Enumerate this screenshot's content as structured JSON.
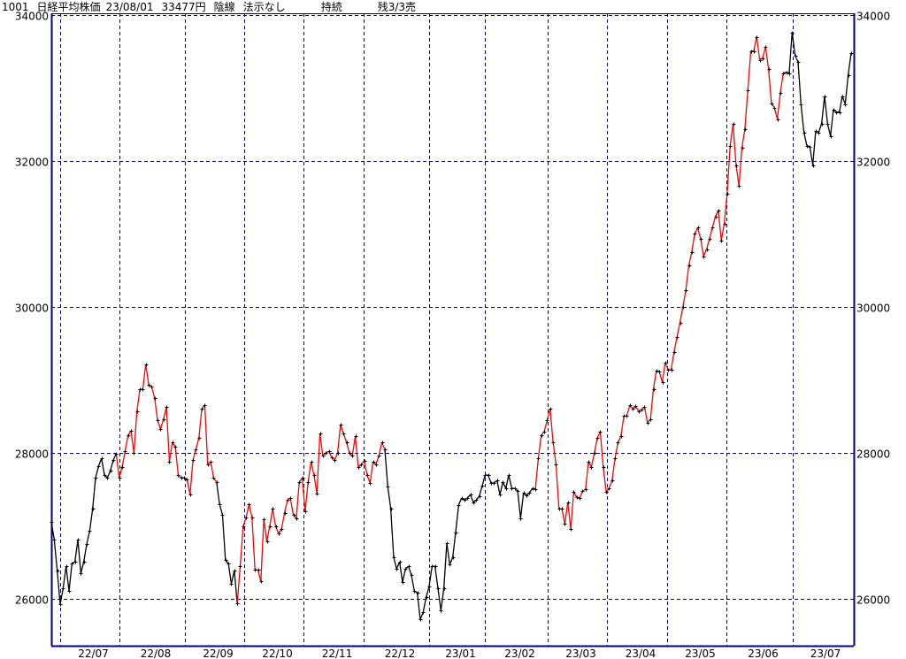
{
  "header": {
    "code": "1001",
    "name": "日経平均株価",
    "date": "23/08/01",
    "price": "33477円",
    "line_type": "陰線",
    "rule": "法示なし",
    "status": "持続",
    "remaining": "残3/3売"
  },
  "colors": {
    "frame": "#000080",
    "grid": "#000080",
    "up_line": "#ff0000",
    "down_line": "#000000",
    "marker": "#000000"
  },
  "chart_data": {
    "type": "line",
    "ylim": [
      25360,
      34020
    ],
    "yticks": [
      34000,
      32000,
      30000,
      28000,
      26000
    ],
    "ytick_labels": [
      "34000",
      "32000",
      "30000",
      "28000",
      "26000"
    ],
    "x_tick_labels": [
      "22/07",
      "22/08",
      "22/09",
      "22/10",
      "22/11",
      "22/12",
      "23/01",
      "23/02",
      "23/03",
      "23/04",
      "23/05",
      "23/06",
      "23/07"
    ],
    "grid": true,
    "markers": "plus",
    "segments": [
      {
        "color": "black",
        "values": [
          27055,
          26812,
          26388,
          25927,
          26145,
          26448,
          26109,
          26485,
          26509,
          26812,
          26351,
          26509,
          26751,
          26933,
          27236,
          27660,
          27818,
          27927,
          27697,
          27660,
          27757,
          27903,
          27988
        ]
      },
      {
        "color": "red",
        "values": [
          27660,
          27806,
          28024,
          28242,
          28303,
          28000,
          28570,
          28873,
          28873,
          29212,
          28933,
          28909,
          28751,
          28448,
          28327,
          28460,
          28630,
          27879,
          28145,
          28085,
          27697,
          27660,
          27660,
          27636,
          27430,
          27903,
          28048,
          28206,
          28606,
          28654,
          27842,
          27879,
          27660,
          27600
        ]
      },
      {
        "color": "black",
        "values": [
          27297,
          27151,
          26533,
          26485,
          26206,
          26388,
          25939
        ]
      },
      {
        "color": "red",
        "values": [
          26448,
          26994,
          27115,
          27297,
          27115,
          26400,
          26400,
          26242,
          27091,
          26788,
          26994,
          27236,
          26994,
          26897,
          26957,
          27176,
          27357,
          27382,
          27151,
          27103,
          27600,
          27660,
          27200,
          27600,
          27879,
          27697,
          27442,
          28266,
          27963,
          28000,
          28024,
          27939,
          27903,
          28000,
          28388,
          28266,
          28145,
          28000,
          27963,
          28230,
          27806,
          27842,
          27891,
          27697,
          27588,
          27879,
          27842,
          27963,
          28145,
          28048
        ]
      },
      {
        "color": "black",
        "values": [
          27539,
          27236,
          26570,
          26412,
          26509,
          26230,
          26412,
          26448,
          26327,
          26109,
          26085,
          25721,
          25818,
          26024,
          26170,
          26448,
          26448,
          26145,
          25842,
          26145,
          26764,
          26473,
          26570,
          26909,
          27285,
          27382,
          27357,
          27382,
          27430,
          27321,
          27357,
          27406,
          27551,
          27697,
          27697,
          27588,
          27588,
          27624,
          27430,
          27600,
          27515,
          27697,
          27515,
          27515,
          27478,
          27103,
          27454,
          27418,
          27454,
          27515,
          27503
        ]
      },
      {
        "color": "red",
        "values": [
          27927,
          28242,
          28291,
          28448,
          28606,
          28145,
          27842,
          27236,
          27236,
          27030,
          27321,
          26957,
          27466,
          27394,
          27382,
          27478,
          27503,
          27879,
          27806,
          28000,
          28206,
          28291,
          27806,
          27466,
          27515,
          27624,
          27927,
          28145,
          28230,
          28509,
          28509,
          28654,
          28606,
          28642,
          28570,
          28594,
          28630,
          28412,
          28460,
          28873,
          29127,
          29115,
          28970,
          29236,
          29139,
          29139,
          29382,
          29588,
          29782,
          30000,
          30230,
          30570,
          30751,
          31000,
          31084,
          30933,
          30691,
          30788,
          30933,
          31084,
          31236,
          31321,
          30909,
          31139,
          31552,
          32206,
          32509,
          31939,
          31660,
          32182,
          32436,
          32970,
          33503,
          33503,
          33697,
          33382,
          33406,
          33564,
          33261,
          32788,
          32727,
          32570,
          32934,
          33200
        ]
      },
      {
        "color": "black",
        "values": [
          33212,
          33200,
          33758,
          33442,
          33357,
          32776,
          32388,
          32206,
          32194,
          31939,
          32412,
          32388,
          32509,
          32885,
          32509,
          32339,
          32703,
          32667,
          32667,
          32885,
          32776,
          33176,
          33477
        ]
      }
    ]
  }
}
